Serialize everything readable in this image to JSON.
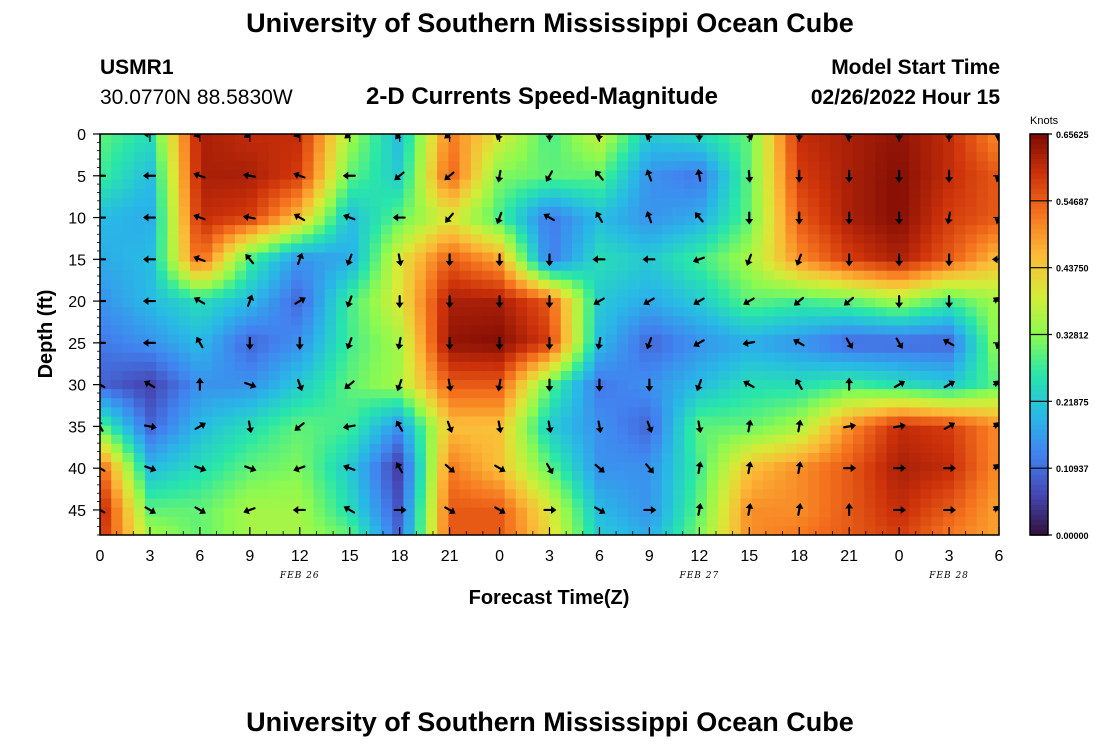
{
  "header": {
    "title": "University of Southern Mississippi Ocean Cube",
    "station_id": "USMR1",
    "station_coords": "30.0770N  88.5830W",
    "chart_title": "2-D Currents Speed-Magnitude",
    "model_start_label": "Model Start Time",
    "model_start_value": "02/26/2022 Hour 15"
  },
  "footer": {
    "title": "University of Southern Mississippi Ocean Cube"
  },
  "chart_data": {
    "type": "heatmap",
    "title": "2-D Currents Speed-Magnitude",
    "xlabel": "Forecast Time(Z)",
    "ylabel": "Depth (ft)",
    "x_tick_labels": [
      "0",
      "3",
      "6",
      "9",
      "12",
      "15",
      "18",
      "21",
      "0",
      "3",
      "6",
      "9",
      "12",
      "15",
      "18",
      "21",
      "0",
      "3",
      "6"
    ],
    "x_range": [
      0,
      54
    ],
    "y_ticks": [
      0,
      5,
      10,
      15,
      20,
      25,
      30,
      35,
      40,
      45
    ],
    "y_range": [
      0,
      48
    ],
    "y_inverted": true,
    "date_labels": [
      {
        "text": "FEB 26",
        "x": 12
      },
      {
        "text": "FEB 27",
        "x": 36
      },
      {
        "text": "FEB 28",
        "x": 51
      }
    ],
    "colorbar": {
      "title": "Knots",
      "tick_values": [
        0.65625,
        0.546875,
        0.4375,
        0.328125,
        0.21875,
        0.109375,
        0.0
      ],
      "tick_labels": [
        "0.65625",
        "0.54687",
        "0.43750",
        "0.32812",
        "0.21875",
        "0.10937",
        "0.00000"
      ],
      "min": 0,
      "max": 0.65625
    },
    "speed_grid": {
      "x": [
        0,
        3,
        6,
        9,
        12,
        15,
        18,
        21,
        24,
        27,
        30,
        33,
        36,
        39,
        42,
        45,
        48,
        51,
        54
      ],
      "depth": [
        0,
        5,
        10,
        15,
        20,
        25,
        30,
        35,
        40,
        45,
        48
      ],
      "values": [
        [
          0.3,
          0.25,
          0.62,
          0.6,
          0.6,
          0.35,
          0.2,
          0.52,
          0.4,
          0.28,
          0.38,
          0.22,
          0.25,
          0.3,
          0.6,
          0.62,
          0.64,
          0.6,
          0.5
        ],
        [
          0.28,
          0.2,
          0.62,
          0.62,
          0.58,
          0.3,
          0.22,
          0.55,
          0.32,
          0.3,
          0.3,
          0.15,
          0.12,
          0.3,
          0.58,
          0.62,
          0.65,
          0.6,
          0.55
        ],
        [
          0.2,
          0.18,
          0.6,
          0.58,
          0.45,
          0.2,
          0.3,
          0.4,
          0.28,
          0.12,
          0.2,
          0.15,
          0.18,
          0.3,
          0.55,
          0.62,
          0.65,
          0.58,
          0.55
        ],
        [
          0.18,
          0.2,
          0.55,
          0.28,
          0.15,
          0.18,
          0.4,
          0.55,
          0.48,
          0.12,
          0.25,
          0.22,
          0.28,
          0.35,
          0.5,
          0.58,
          0.62,
          0.55,
          0.45
        ],
        [
          0.15,
          0.2,
          0.25,
          0.2,
          0.1,
          0.28,
          0.4,
          0.62,
          0.62,
          0.55,
          0.22,
          0.18,
          0.22,
          0.3,
          0.28,
          0.3,
          0.35,
          0.28,
          0.35
        ],
        [
          0.12,
          0.15,
          0.2,
          0.1,
          0.15,
          0.28,
          0.35,
          0.64,
          0.65,
          0.58,
          0.2,
          0.1,
          0.15,
          0.18,
          0.15,
          0.1,
          0.1,
          0.1,
          0.35
        ],
        [
          0.1,
          0.06,
          0.15,
          0.15,
          0.22,
          0.3,
          0.35,
          0.55,
          0.55,
          0.3,
          0.12,
          0.15,
          0.2,
          0.25,
          0.25,
          0.28,
          0.25,
          0.22,
          0.3
        ],
        [
          0.3,
          0.1,
          0.2,
          0.25,
          0.3,
          0.28,
          0.15,
          0.45,
          0.45,
          0.22,
          0.15,
          0.1,
          0.3,
          0.3,
          0.35,
          0.5,
          0.6,
          0.58,
          0.5
        ],
        [
          0.55,
          0.2,
          0.25,
          0.3,
          0.32,
          0.22,
          0.05,
          0.52,
          0.45,
          0.3,
          0.15,
          0.15,
          0.28,
          0.45,
          0.5,
          0.55,
          0.62,
          0.6,
          0.5
        ],
        [
          0.62,
          0.3,
          0.3,
          0.35,
          0.35,
          0.25,
          0.08,
          0.55,
          0.55,
          0.4,
          0.2,
          0.15,
          0.3,
          0.5,
          0.5,
          0.55,
          0.6,
          0.55,
          0.48
        ],
        [
          0.6,
          0.35,
          0.3,
          0.35,
          0.35,
          0.3,
          0.1,
          0.55,
          0.55,
          0.42,
          0.22,
          0.18,
          0.32,
          0.5,
          0.52,
          0.55,
          0.58,
          0.52,
          0.48
        ]
      ]
    },
    "vector_field": {
      "x": [
        0,
        3,
        6,
        9,
        12,
        15,
        18,
        21,
        24,
        27,
        30,
        33,
        36,
        39,
        42,
        45,
        48,
        51,
        54
      ],
      "depth": [
        0,
        5,
        10,
        15,
        20,
        25,
        30,
        35,
        40,
        45
      ],
      "direction_deg": [
        [
          240,
          270,
          250,
          240,
          250,
          230,
          220,
          230,
          200,
          180,
          190,
          200,
          180,
          160,
          180,
          190,
          180,
          180,
          190
        ],
        [
          270,
          270,
          290,
          280,
          290,
          270,
          230,
          230,
          190,
          210,
          320,
          340,
          350,
          175,
          180,
          180,
          180,
          180,
          200
        ],
        [
          270,
          270,
          290,
          280,
          300,
          290,
          270,
          220,
          200,
          300,
          330,
          340,
          320,
          180,
          180,
          180,
          180,
          190,
          200
        ],
        [
          270,
          270,
          290,
          320,
          20,
          200,
          170,
          180,
          180,
          180,
          270,
          270,
          250,
          200,
          200,
          180,
          180,
          180,
          270
        ],
        [
          270,
          270,
          300,
          20,
          60,
          200,
          180,
          180,
          180,
          180,
          240,
          240,
          240,
          240,
          230,
          230,
          180,
          180,
          300
        ],
        [
          270,
          270,
          330,
          180,
          180,
          200,
          190,
          180,
          180,
          180,
          190,
          200,
          240,
          260,
          300,
          150,
          150,
          300,
          200
        ],
        [
          300,
          300,
          0,
          110,
          160,
          230,
          200,
          170,
          190,
          180,
          180,
          180,
          200,
          300,
          330,
          360,
          60,
          60,
          300
        ],
        [
          330,
          100,
          60,
          170,
          230,
          260,
          330,
          160,
          170,
          170,
          170,
          160,
          170,
          10,
          10,
          80,
          80,
          60,
          300
        ],
        [
          300,
          110,
          110,
          110,
          250,
          290,
          330,
          130,
          120,
          150,
          130,
          140,
          10,
          10,
          10,
          90,
          90,
          90,
          300
        ],
        [
          300,
          120,
          120,
          250,
          270,
          300,
          90,
          120,
          120,
          90,
          120,
          90,
          10,
          10,
          10,
          360,
          90,
          90,
          300
        ]
      ]
    }
  }
}
